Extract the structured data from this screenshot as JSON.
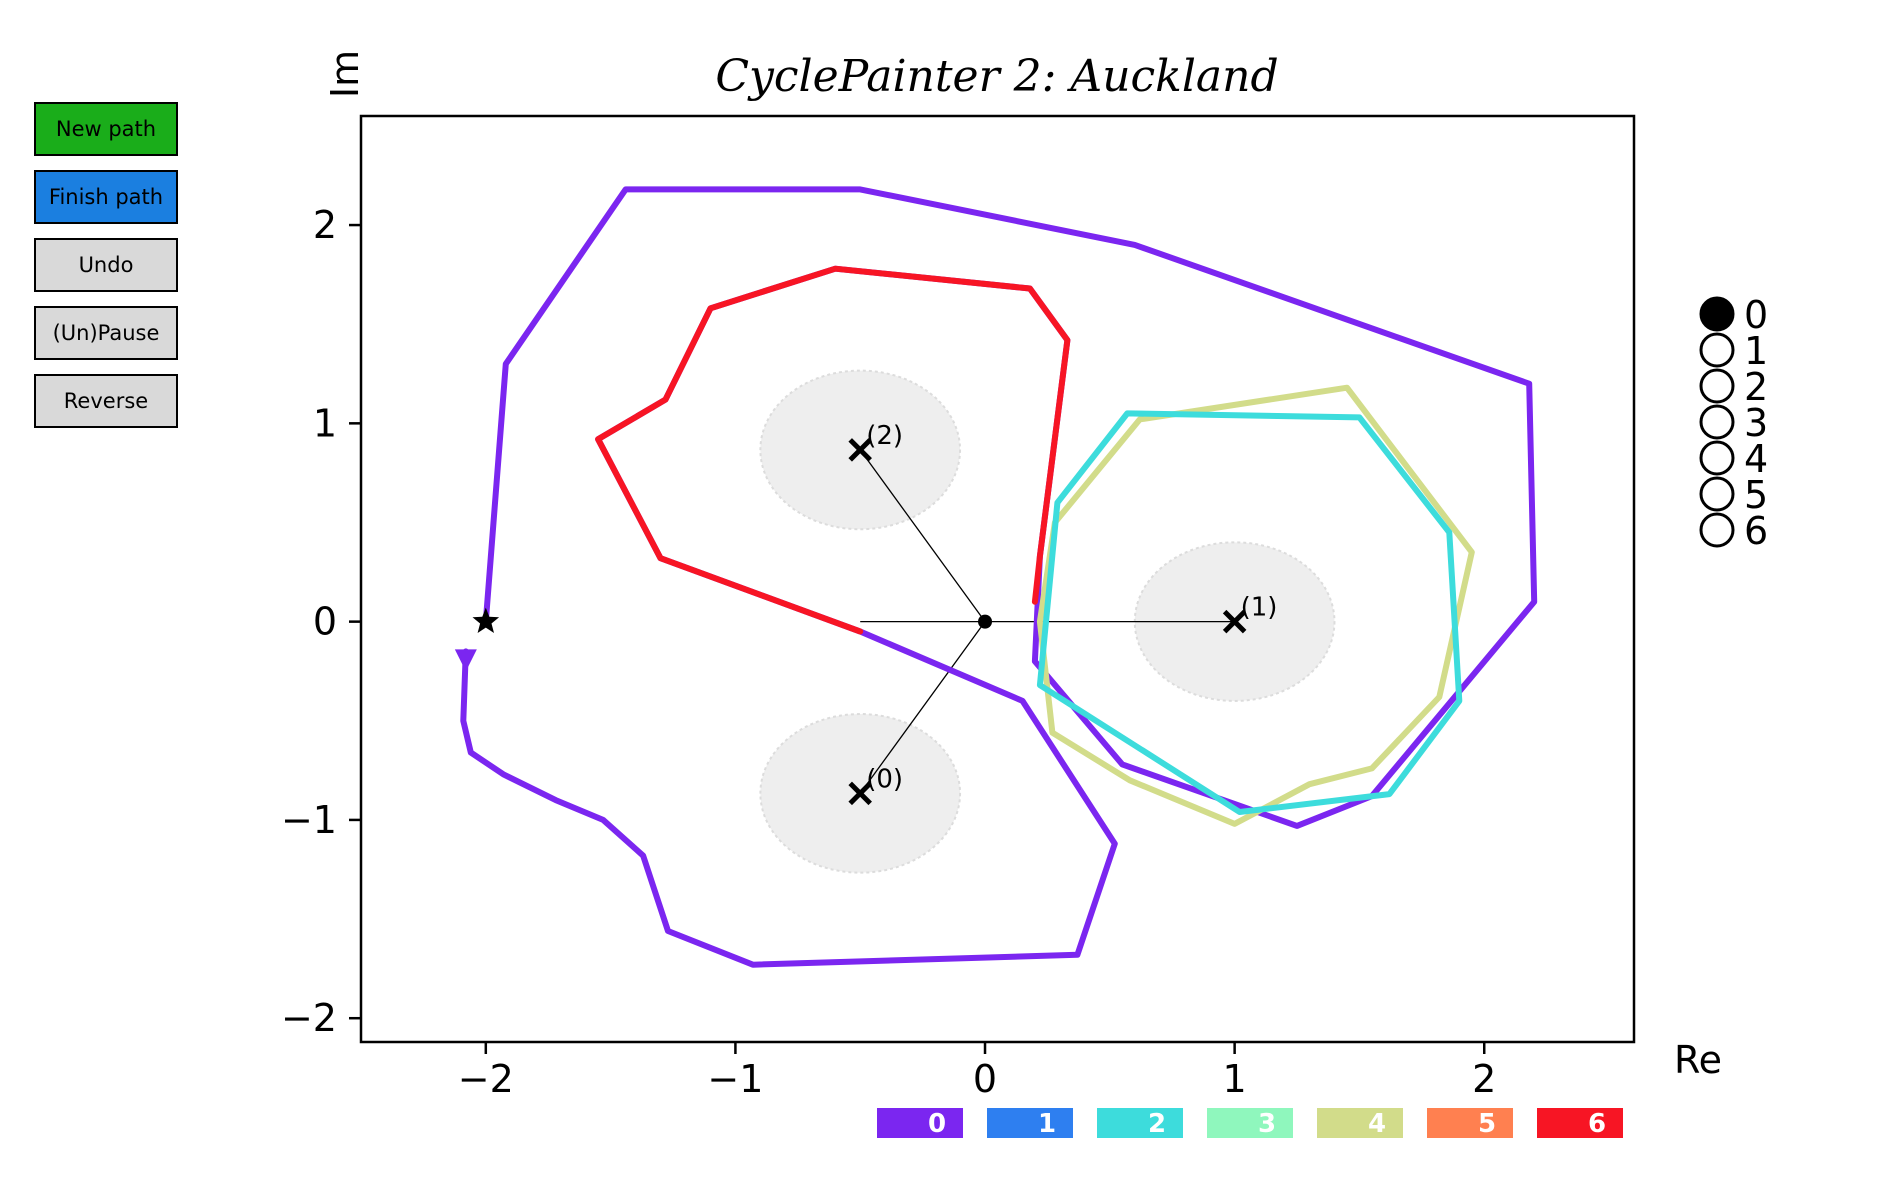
{
  "app": {
    "title": "CyclePainter 2: Auckland"
  },
  "buttons": [
    {
      "label": "New path",
      "color": "#1aad1a"
    },
    {
      "label": "Finish path",
      "color": "#1b7fe0"
    },
    {
      "label": "Undo",
      "color": "#d9d9d9"
    },
    {
      "label": "(Un)Pause",
      "color": "#d9d9d9"
    },
    {
      "label": "Reverse",
      "color": "#d9d9d9"
    }
  ],
  "axes": {
    "xlabel": "Re",
    "ylabel": "Im",
    "xlim": [
      -2.5,
      2.6
    ],
    "ylim": [
      -2.12,
      2.55
    ],
    "xticks": [
      -2,
      -1,
      0,
      1,
      2
    ],
    "yticks": [
      -2,
      -1,
      0,
      1,
      2
    ],
    "xtick_labels": [
      "−2",
      "−1",
      "0",
      "1",
      "2"
    ],
    "ytick_labels": [
      "−2",
      "−1",
      "0",
      "1",
      "2"
    ]
  },
  "singularities": [
    {
      "label": "(0)",
      "x": -0.5,
      "y": -0.866
    },
    {
      "label": "(1)",
      "x": 1.0,
      "y": 0.0
    },
    {
      "label": "(2)",
      "x": -0.5,
      "y": 0.866
    }
  ],
  "base_point": {
    "x": -2.0,
    "y": 0.0,
    "marker": "star-icon"
  },
  "center_point": {
    "x": 0.0,
    "y": 0.0
  },
  "radio": {
    "options": [
      "0",
      "1",
      "2",
      "3",
      "4",
      "5",
      "6"
    ],
    "selected": 0
  },
  "palette": [
    {
      "label": "0",
      "color": "#7b26f0"
    },
    {
      "label": "1",
      "color": "#2e7ff0"
    },
    {
      "label": "2",
      "color": "#3ddcdc"
    },
    {
      "label": "3",
      "color": "#8ff7bd"
    },
    {
      "label": "4",
      "color": "#d2dc8a"
    },
    {
      "label": "5",
      "color": "#ff8050"
    },
    {
      "label": "6",
      "color": "#f71524"
    }
  ],
  "paths": [
    {
      "color_index": 0,
      "points": [
        [
          -2.0,
          0.0
        ],
        [
          -1.92,
          1.3
        ],
        [
          -1.44,
          2.18
        ],
        [
          -0.5,
          2.18
        ],
        [
          0.6,
          1.9
        ],
        [
          2.18,
          1.2
        ],
        [
          2.2,
          0.1
        ],
        [
          1.55,
          -0.88
        ],
        [
          1.25,
          -1.03
        ],
        [
          0.55,
          -0.72
        ],
        [
          0.2,
          -0.2
        ],
        [
          0.22,
          0.33
        ],
        [
          0.33,
          1.42
        ],
        [
          0.18,
          1.68
        ],
        [
          -0.6,
          1.78
        ],
        [
          -1.1,
          1.58
        ],
        [
          -1.28,
          1.12
        ],
        [
          -1.55,
          0.92
        ],
        [
          -1.3,
          0.32
        ],
        [
          -0.5,
          -0.05
        ],
        [
          0.15,
          -0.4
        ],
        [
          0.52,
          -1.12
        ],
        [
          0.37,
          -1.68
        ],
        [
          -0.93,
          -1.73
        ],
        [
          -1.27,
          -1.56
        ],
        [
          -1.37,
          -1.18
        ],
        [
          -1.53,
          -1.0
        ],
        [
          -1.72,
          -0.9
        ],
        [
          -1.93,
          -0.77
        ],
        [
          -2.06,
          -0.66
        ],
        [
          -2.09,
          -0.5
        ],
        [
          -2.08,
          -0.15
        ]
      ]
    },
    {
      "color_index": 6,
      "points": [
        [
          -0.5,
          -0.05
        ],
        [
          -1.3,
          0.32
        ],
        [
          -1.55,
          0.92
        ],
        [
          -1.28,
          1.12
        ],
        [
          -1.1,
          1.58
        ],
        [
          -0.6,
          1.78
        ],
        [
          0.18,
          1.68
        ],
        [
          0.33,
          1.42
        ],
        [
          0.22,
          0.33
        ],
        [
          0.2,
          0.1
        ]
      ]
    },
    {
      "color_index": 4,
      "points": [
        [
          0.28,
          0.5
        ],
        [
          0.62,
          1.02
        ],
        [
          1.45,
          1.18
        ],
        [
          1.95,
          0.35
        ],
        [
          1.82,
          -0.38
        ],
        [
          1.55,
          -0.74
        ],
        [
          1.3,
          -0.82
        ],
        [
          1.0,
          -1.02
        ],
        [
          0.58,
          -0.8
        ],
        [
          0.27,
          -0.56
        ],
        [
          0.22,
          0.0
        ],
        [
          0.28,
          0.5
        ]
      ]
    },
    {
      "color_index": 2,
      "points": [
        [
          0.29,
          0.6
        ],
        [
          0.57,
          1.05
        ],
        [
          1.5,
          1.03
        ],
        [
          1.86,
          0.45
        ],
        [
          1.9,
          -0.4
        ],
        [
          1.62,
          -0.87
        ],
        [
          1.02,
          -0.96
        ],
        [
          0.22,
          -0.32
        ],
        [
          0.29,
          0.6
        ]
      ]
    }
  ]
}
